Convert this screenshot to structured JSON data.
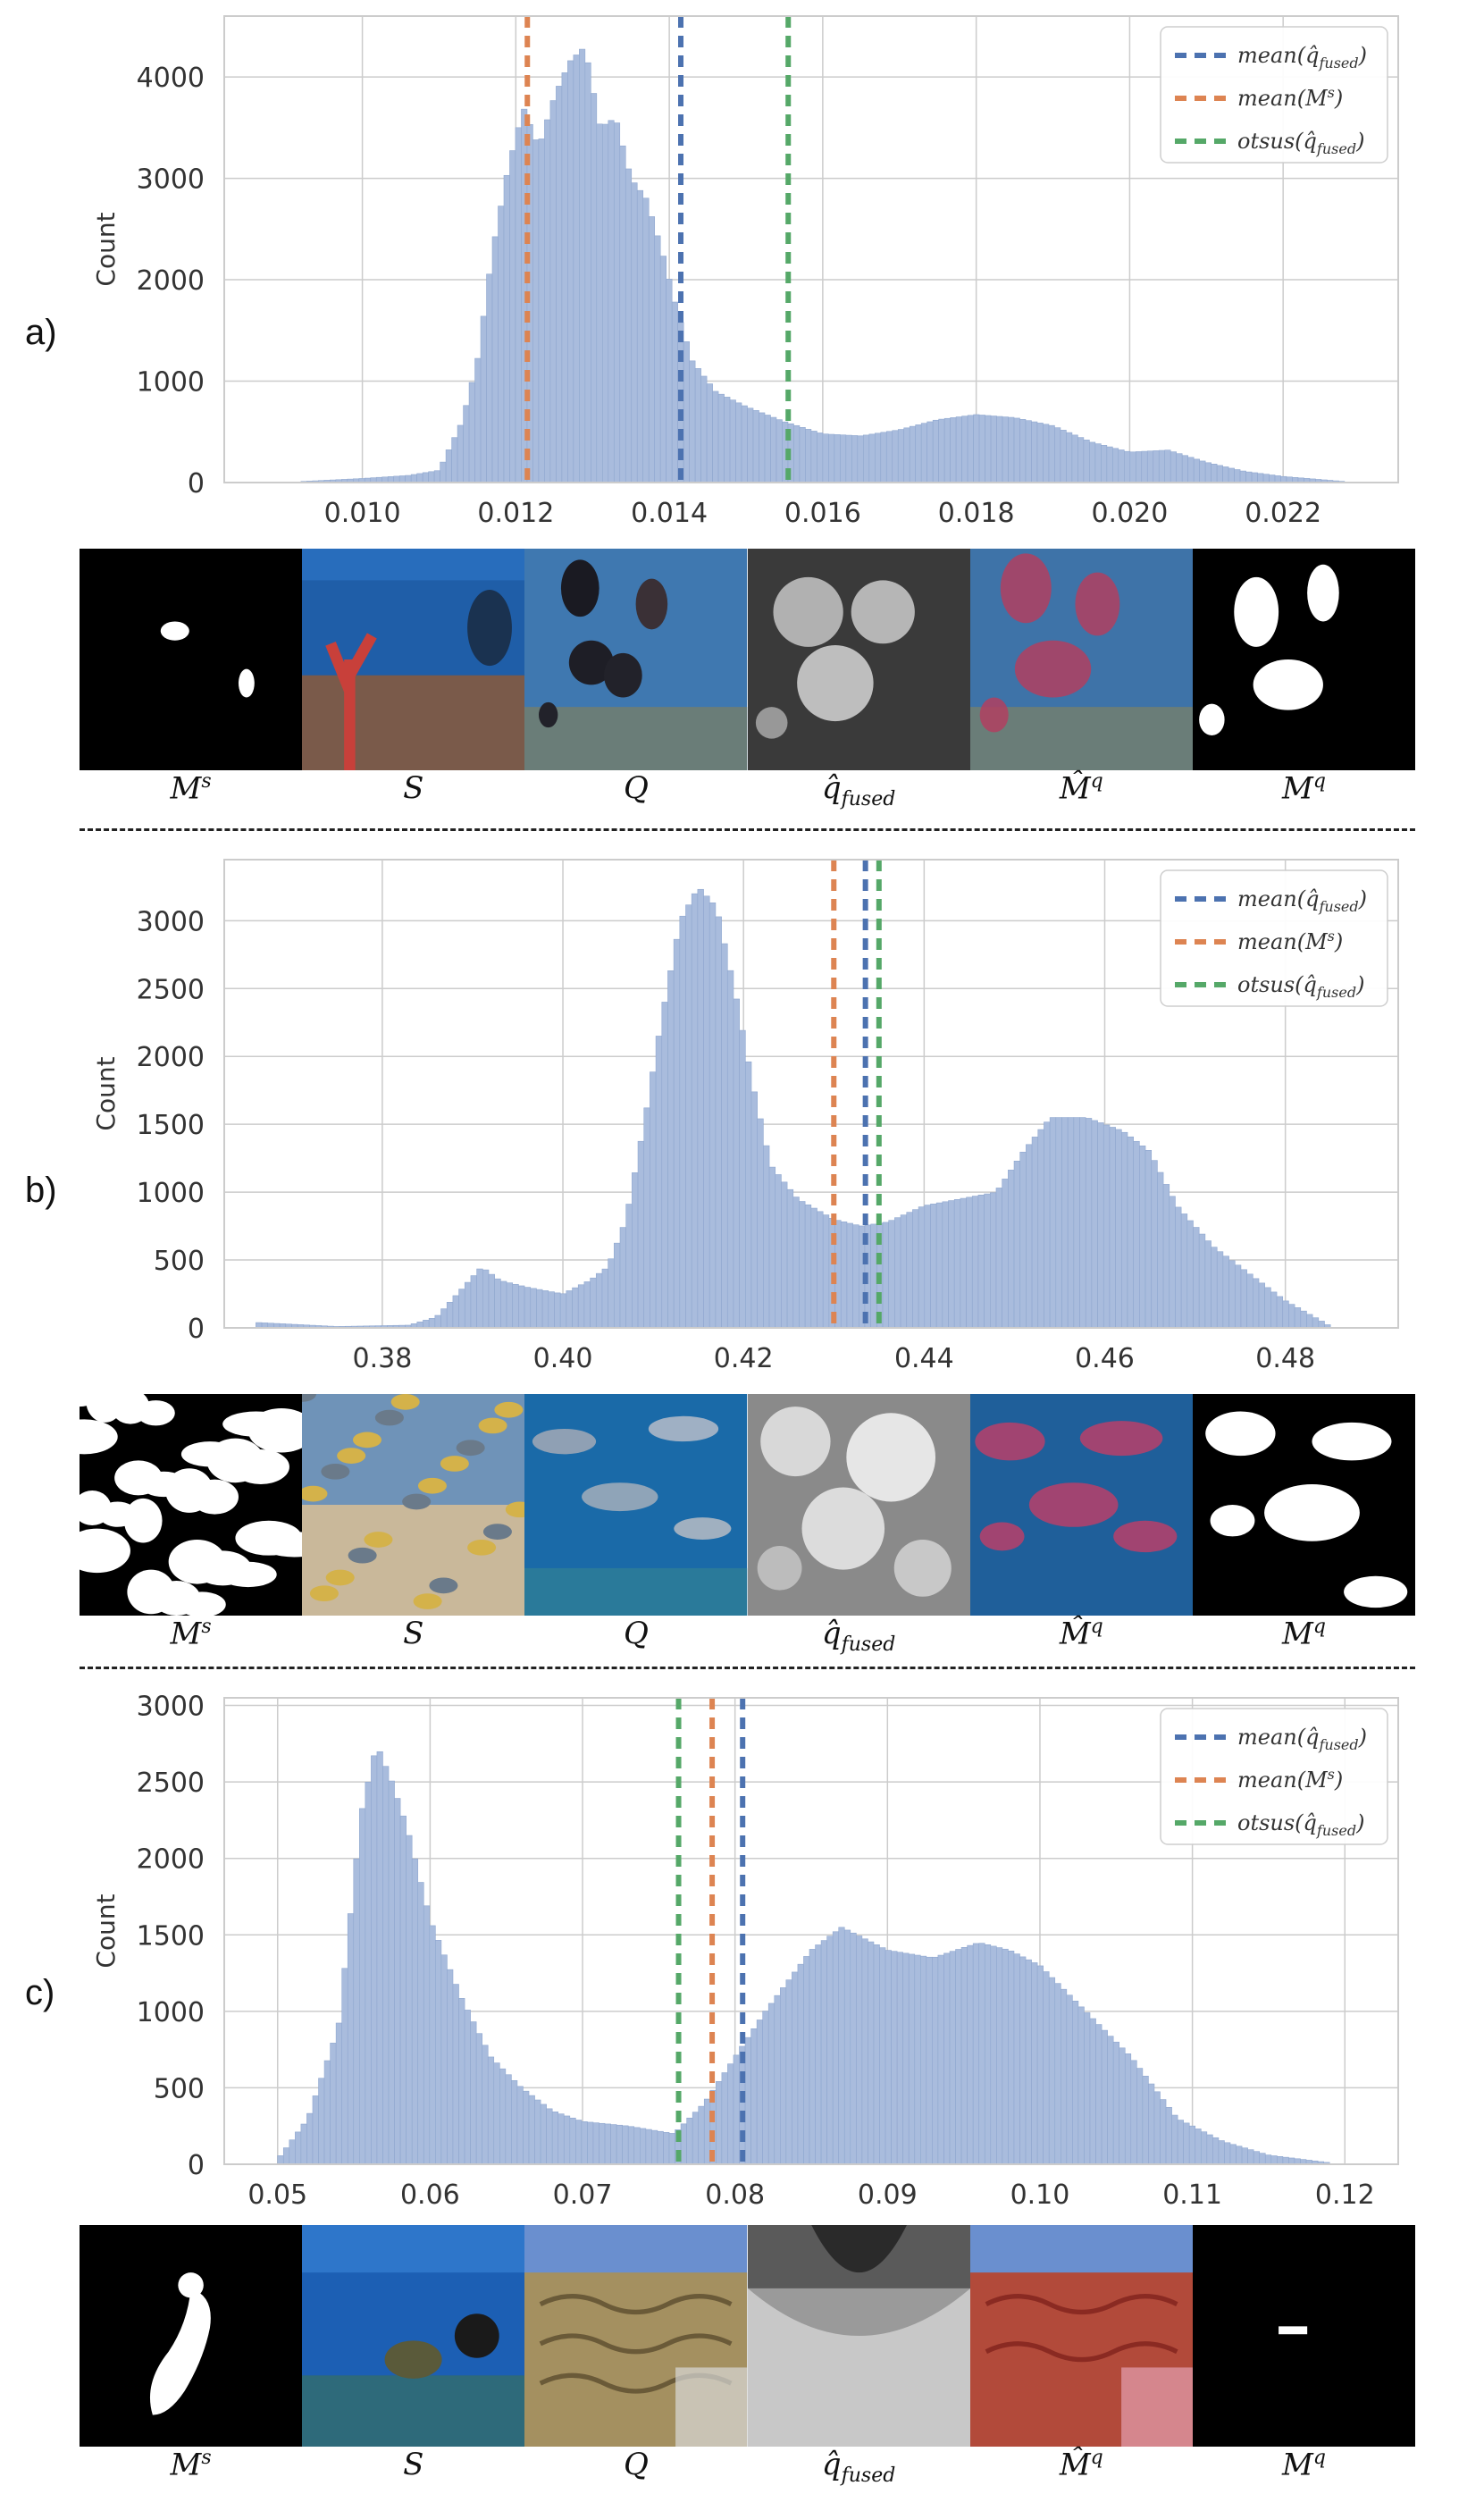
{
  "panels": [
    {
      "label": "a)",
      "chart_data": {
        "type": "bar",
        "ylabel": "Count",
        "xlabel": "",
        "xlim": [
          0.0082,
          0.0235
        ],
        "ylim": [
          0,
          4600
        ],
        "xticks": [
          0.01,
          0.012,
          0.014,
          0.016,
          0.018,
          0.02,
          0.022
        ],
        "xtick_labels": [
          "0.010",
          "0.012",
          "0.014",
          "0.016",
          "0.018",
          "0.020",
          "0.022"
        ],
        "yticks": [
          0,
          1000,
          2000,
          3000,
          4000
        ],
        "ytick_labels": [
          "0",
          "1000",
          "2000",
          "3000",
          "4000"
        ],
        "bin_range": [
          0.0092,
          0.0228
        ],
        "grid": true,
        "legend_position": "top-right",
        "hist_profile": [
          [
            0.0092,
            10
          ],
          [
            0.01,
            40
          ],
          [
            0.0106,
            70
          ],
          [
            0.011,
            120
          ],
          [
            0.0113,
            600
          ],
          [
            0.0115,
            1200
          ],
          [
            0.0117,
            2300
          ],
          [
            0.0119,
            3100
          ],
          [
            0.0121,
            3700
          ],
          [
            0.0123,
            3300
          ],
          [
            0.0125,
            3800
          ],
          [
            0.0127,
            4150
          ],
          [
            0.0129,
            4300
          ],
          [
            0.0131,
            3500
          ],
          [
            0.0133,
            3600
          ],
          [
            0.0135,
            3000
          ],
          [
            0.0137,
            2800
          ],
          [
            0.0139,
            2300
          ],
          [
            0.0141,
            1700
          ],
          [
            0.0143,
            1200
          ],
          [
            0.0146,
            900
          ],
          [
            0.015,
            750
          ],
          [
            0.0155,
            600
          ],
          [
            0.016,
            480
          ],
          [
            0.0165,
            460
          ],
          [
            0.017,
            520
          ],
          [
            0.0175,
            620
          ],
          [
            0.018,
            670
          ],
          [
            0.0185,
            640
          ],
          [
            0.019,
            560
          ],
          [
            0.0195,
            400
          ],
          [
            0.02,
            300
          ],
          [
            0.0205,
            320
          ],
          [
            0.021,
            200
          ],
          [
            0.0215,
            110
          ],
          [
            0.022,
            60
          ],
          [
            0.0228,
            10
          ]
        ],
        "series": [
          {
            "name": "mean(q̂_fused)",
            "value": 0.01415,
            "color": "#4c72b0"
          },
          {
            "name": "mean(M^s)",
            "value": 0.01215,
            "color": "#dd8452"
          },
          {
            "name": "otsus(q̂_fused)",
            "value": 0.01555,
            "color": "#55a868"
          }
        ]
      },
      "thumbs": [
        "mask-few-fish",
        "coral-reef-diver",
        "dark-fish-blue",
        "heatmap-three-blobs",
        "overlay-red-fish",
        "mask-three-fish"
      ],
      "captions": [
        {
          "base": "M",
          "sup": "s",
          "sub": ""
        },
        {
          "base": "S",
          "sup": "",
          "sub": ""
        },
        {
          "base": "Q",
          "sup": "",
          "sub": ""
        },
        {
          "base": "q̂",
          "sup": "",
          "sub": "fused"
        },
        {
          "base": "M̂",
          "sup": "q",
          "sub": ""
        },
        {
          "base": "M",
          "sup": "q",
          "sub": ""
        }
      ]
    },
    {
      "label": "b)",
      "chart_data": {
        "type": "bar",
        "ylabel": "Count",
        "xlabel": "",
        "xlim": [
          0.3625,
          0.4925
        ],
        "ylim": [
          0,
          3450
        ],
        "xticks": [
          0.38,
          0.4,
          0.42,
          0.44,
          0.46,
          0.48
        ],
        "xtick_labels": [
          "0.38",
          "0.40",
          "0.42",
          "0.44",
          "0.46",
          "0.48"
        ],
        "yticks": [
          0,
          500,
          1000,
          1500,
          2000,
          2500,
          3000
        ],
        "ytick_labels": [
          "0",
          "500",
          "1000",
          "1500",
          "2000",
          "2500",
          "3000"
        ],
        "bin_range": [
          0.366,
          0.485
        ],
        "grid": true,
        "legend_position": "top-right",
        "hist_profile": [
          [
            0.366,
            40
          ],
          [
            0.375,
            10
          ],
          [
            0.383,
            20
          ],
          [
            0.386,
            80
          ],
          [
            0.389,
            300
          ],
          [
            0.391,
            450
          ],
          [
            0.393,
            350
          ],
          [
            0.396,
            300
          ],
          [
            0.4,
            250
          ],
          [
            0.403,
            350
          ],
          [
            0.405,
            450
          ],
          [
            0.407,
            800
          ],
          [
            0.409,
            1500
          ],
          [
            0.411,
            2300
          ],
          [
            0.413,
            3000
          ],
          [
            0.415,
            3250
          ],
          [
            0.417,
            3100
          ],
          [
            0.419,
            2500
          ],
          [
            0.421,
            1800
          ],
          [
            0.423,
            1200
          ],
          [
            0.426,
            950
          ],
          [
            0.43,
            800
          ],
          [
            0.433,
            750
          ],
          [
            0.436,
            780
          ],
          [
            0.44,
            900
          ],
          [
            0.444,
            950
          ],
          [
            0.448,
            1000
          ],
          [
            0.451,
            1300
          ],
          [
            0.454,
            1550
          ],
          [
            0.458,
            1550
          ],
          [
            0.462,
            1450
          ],
          [
            0.465,
            1300
          ],
          [
            0.468,
            900
          ],
          [
            0.472,
            600
          ],
          [
            0.476,
            400
          ],
          [
            0.48,
            200
          ],
          [
            0.484,
            50
          ],
          [
            0.485,
            10
          ]
        ],
        "series": [
          {
            "name": "mean(q̂_fused)",
            "value": 0.4335,
            "color": "#4c72b0"
          },
          {
            "name": "mean(M^s)",
            "value": 0.43,
            "color": "#dd8452"
          },
          {
            "name": "otsus(q̂_fused)",
            "value": 0.435,
            "color": "#55a868"
          }
        ]
      },
      "thumbs": [
        "mask-many-fish",
        "school-of-fish",
        "yellowtail-fish",
        "heatmap-many-fish",
        "overlay-many-fish",
        "mask-large-fish"
      ],
      "captions": [
        {
          "base": "M",
          "sup": "s",
          "sub": ""
        },
        {
          "base": "S",
          "sup": "",
          "sub": ""
        },
        {
          "base": "Q",
          "sup": "",
          "sub": ""
        },
        {
          "base": "q̂",
          "sup": "",
          "sub": "fused"
        },
        {
          "base": "M̂",
          "sup": "q",
          "sub": ""
        },
        {
          "base": "M",
          "sup": "q",
          "sub": ""
        }
      ]
    },
    {
      "label": "c)",
      "chart_data": {
        "type": "bar",
        "ylabel": "Count",
        "xlabel": "",
        "xlim": [
          0.0465,
          0.1235
        ],
        "ylim": [
          0,
          3050
        ],
        "xticks": [
          0.05,
          0.06,
          0.07,
          0.08,
          0.09,
          0.1,
          0.11,
          0.12
        ],
        "xtick_labels": [
          "0.05",
          "0.06",
          "0.07",
          "0.08",
          "0.09",
          "0.10",
          "0.11",
          "0.12"
        ],
        "yticks": [
          0,
          500,
          1000,
          1500,
          2000,
          2500,
          3000
        ],
        "ytick_labels": [
          "0",
          "500",
          "1000",
          "1500",
          "2000",
          "2500",
          "3000"
        ],
        "bin_range": [
          0.05,
          0.119
        ],
        "grid": true,
        "legend_position": "top-right",
        "hist_profile": [
          [
            0.05,
            30
          ],
          [
            0.052,
            300
          ],
          [
            0.054,
            900
          ],
          [
            0.0555,
            2300
          ],
          [
            0.0565,
            2750
          ],
          [
            0.0575,
            2500
          ],
          [
            0.0585,
            2200
          ],
          [
            0.06,
            1600
          ],
          [
            0.062,
            1100
          ],
          [
            0.064,
            700
          ],
          [
            0.066,
            500
          ],
          [
            0.068,
            350
          ],
          [
            0.07,
            280
          ],
          [
            0.073,
            250
          ],
          [
            0.076,
            200
          ],
          [
            0.078,
            400
          ],
          [
            0.08,
            700
          ],
          [
            0.082,
            1000
          ],
          [
            0.085,
            1400
          ],
          [
            0.087,
            1550
          ],
          [
            0.09,
            1400
          ],
          [
            0.093,
            1350
          ],
          [
            0.096,
            1450
          ],
          [
            0.098,
            1400
          ],
          [
            0.1,
            1300
          ],
          [
            0.103,
            1000
          ],
          [
            0.106,
            700
          ],
          [
            0.109,
            300
          ],
          [
            0.112,
            150
          ],
          [
            0.115,
            60
          ],
          [
            0.119,
            10
          ]
        ],
        "series": [
          {
            "name": "mean(q̂_fused)",
            "value": 0.0805,
            "color": "#4c72b0"
          },
          {
            "name": "mean(M^s)",
            "value": 0.0785,
            "color": "#dd8452"
          },
          {
            "name": "otsus(q̂_fused)",
            "value": 0.0763,
            "color": "#55a868"
          }
        ]
      },
      "thumbs": [
        "mask-turtle",
        "diver-turtle",
        "brain-coral",
        "heatmap-coral",
        "overlay-coral",
        "mask-small-spot"
      ],
      "captions": [
        {
          "base": "M",
          "sup": "s",
          "sub": ""
        },
        {
          "base": "S",
          "sup": "",
          "sub": ""
        },
        {
          "base": "Q",
          "sup": "",
          "sub": ""
        },
        {
          "base": "q̂",
          "sup": "",
          "sub": "fused"
        },
        {
          "base": "M̂",
          "sup": "q",
          "sub": ""
        },
        {
          "base": "M",
          "sup": "q",
          "sub": ""
        }
      ]
    }
  ],
  "legend_entries": [
    {
      "func": "mean",
      "arg_base": "q̂",
      "arg_sup": "",
      "arg_sub": "fused"
    },
    {
      "func": "mean",
      "arg_base": "M",
      "arg_sup": "s",
      "arg_sub": ""
    },
    {
      "func": "otsus",
      "arg_base": "q̂",
      "arg_sup": "",
      "arg_sub": "fused"
    }
  ],
  "colors": {
    "bar_fill": "#a9bcdd",
    "bar_edge": "#8fa7cf",
    "grid": "#cccccc",
    "frame": "#cccccc"
  }
}
